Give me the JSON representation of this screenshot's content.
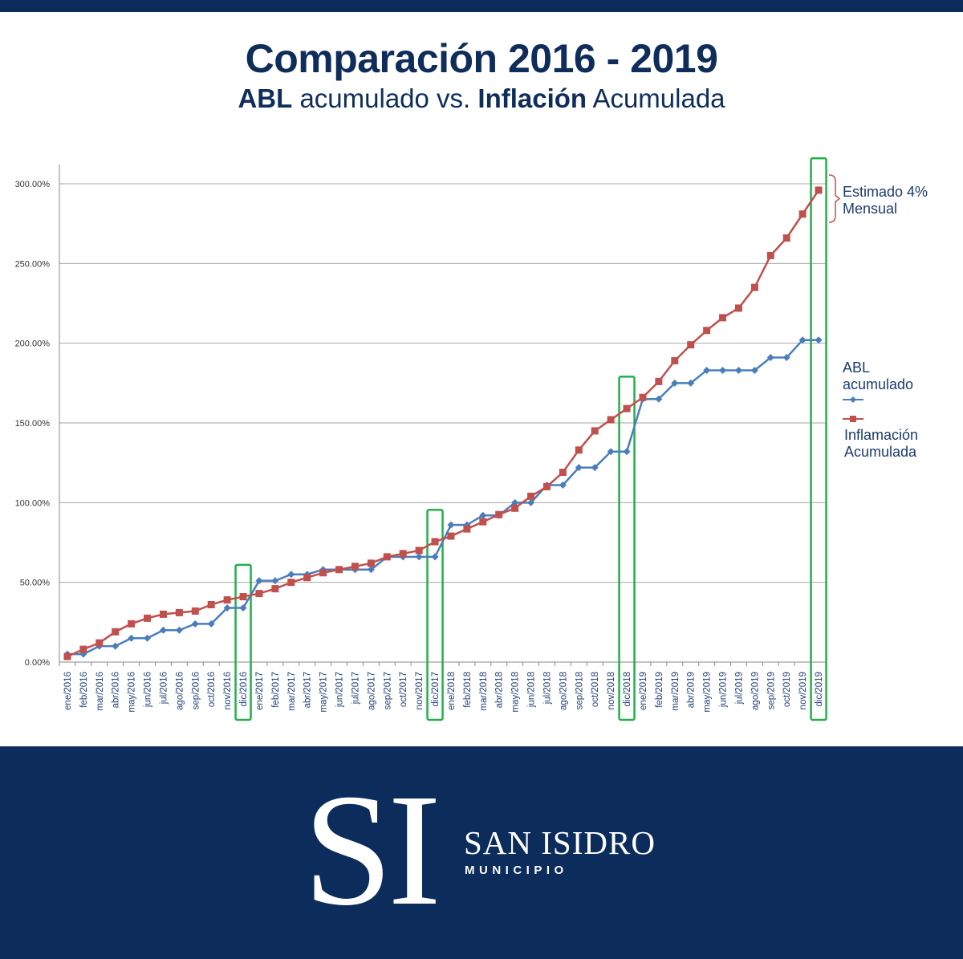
{
  "header": {
    "title": "Comparación 2016 - 2019",
    "subtitle_bold_1": "ABL",
    "subtitle_text_1": " acumulado vs. ",
    "subtitle_bold_2": "Inflación",
    "subtitle_text_2": " Acumulada"
  },
  "chart_data": {
    "type": "line",
    "title": "Comparación 2016 - 2019",
    "xlabel": "",
    "ylabel": "",
    "ylim": [
      0,
      300
    ],
    "yticks": [
      0,
      50,
      100,
      150,
      200,
      250,
      300
    ],
    "ytick_labels": [
      "0.00%",
      "50.00%",
      "100.00%",
      "150.00%",
      "200.00%",
      "250.00%",
      "300.00%"
    ],
    "grid": true,
    "legend_position": "right",
    "categories": [
      "ene/2016",
      "feb/2016",
      "mar/2016",
      "abr/2016",
      "may/2016",
      "jun/2016",
      "jul/2016",
      "ago/2016",
      "sep/2016",
      "oct/2016",
      "nov/2016",
      "dic/2016",
      "ene/2017",
      "feb/2017",
      "mar/2017",
      "abr/2017",
      "may/2017",
      "jun/2017",
      "jul/2017",
      "ago/2017",
      "sep/2017",
      "oct/2017",
      "nov/2017",
      "dic/2017",
      "ene/2018",
      "feb/2018",
      "mar/2018",
      "abr/2018",
      "may/2018",
      "jun/2018",
      "jul/2018",
      "ago/2018",
      "sep/2018",
      "oct/2018",
      "nov/2018",
      "dic/2018",
      "ene/2019",
      "feb/2019",
      "mar/2019",
      "abr/2019",
      "may/2019",
      "jun/2019",
      "jul/2019",
      "ago/2019",
      "sep/2019",
      "oct/2019",
      "nov/2019",
      "dic/2019"
    ],
    "series": [
      {
        "name": "ABL acumulado",
        "color": "#4a7ebb",
        "marker": "diamond",
        "values": [
          5,
          5,
          10,
          10,
          15,
          15,
          20,
          20,
          24,
          24,
          34,
          34,
          51,
          51,
          55,
          55,
          58,
          58,
          58,
          58,
          66,
          66,
          66,
          66,
          86,
          86,
          92,
          92,
          100,
          100,
          111,
          111,
          122,
          122,
          132,
          132,
          165,
          165,
          175,
          175,
          183,
          183,
          183,
          183,
          191,
          191,
          202,
          202
        ]
      },
      {
        "name": "Inflamación Acumulada",
        "color": "#c0504d",
        "marker": "square",
        "values": [
          3.5,
          8,
          12,
          19,
          24,
          27.5,
          30,
          31,
          32,
          36,
          39,
          41,
          43,
          46,
          50,
          53,
          56,
          58,
          60,
          62,
          66,
          68,
          70,
          75.5,
          79,
          83.5,
          88,
          92.5,
          96.5,
          104,
          110,
          119,
          133,
          145,
          152,
          159,
          166,
          176,
          189,
          199,
          208,
          216,
          222,
          235,
          255,
          266,
          281,
          296
        ]
      }
    ],
    "highlighted_categories": [
      "dic/2016",
      "dic/2017",
      "dic/2018",
      "dic/2019"
    ],
    "highlight_color": "#22b04b",
    "annotation": {
      "line1": "Estimado 4%",
      "line2": "Mensual",
      "category": "dic/2019"
    },
    "legend": [
      {
        "line1": "ABL",
        "line2": "acumulado"
      },
      {
        "line1": "Inflamación",
        "line2": "Acumulada"
      }
    ]
  },
  "footer": {
    "logo_letters": "SI",
    "name": "SAN ISIDRO",
    "subtitle": "MUNICIPIO"
  }
}
